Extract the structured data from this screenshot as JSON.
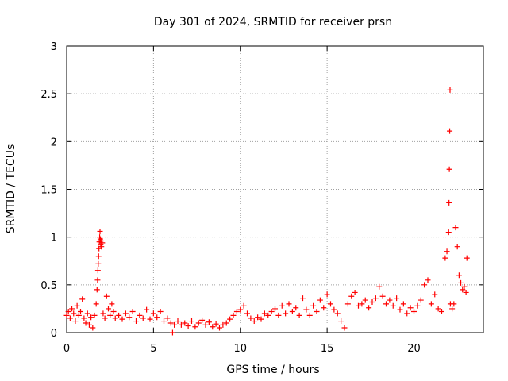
{
  "chart_data": {
    "type": "scatter",
    "title": "Day 301 of 2024, SRMTID for receiver prsn",
    "xlabel": "GPS time / hours",
    "ylabel": "SRMTID / TECUs",
    "xlim": [
      0,
      24
    ],
    "ylim": [
      0,
      3
    ],
    "xticks": [
      0,
      5,
      10,
      15,
      20
    ],
    "yticks": [
      0,
      0.5,
      1,
      1.5,
      2,
      2.5,
      3
    ],
    "xtick_labels": [
      "0",
      "5",
      "10",
      "15",
      "20"
    ],
    "ytick_labels": [
      "0",
      "0.5",
      "1",
      "1.5",
      "2",
      "2.5",
      "3"
    ],
    "grid": true,
    "marker": "+",
    "color": "#ff0000",
    "series": [
      {
        "name": "SRMTID",
        "points": [
          [
            0.0,
            0.18
          ],
          [
            0.1,
            0.22
          ],
          [
            0.2,
            0.15
          ],
          [
            0.3,
            0.25
          ],
          [
            0.4,
            0.2
          ],
          [
            0.5,
            0.12
          ],
          [
            0.6,
            0.28
          ],
          [
            0.7,
            0.18
          ],
          [
            0.8,
            0.22
          ],
          [
            0.9,
            0.35
          ],
          [
            1.0,
            0.15
          ],
          [
            1.1,
            0.1
          ],
          [
            1.2,
            0.2
          ],
          [
            1.3,
            0.08
          ],
          [
            1.4,
            0.16
          ],
          [
            1.5,
            0.05
          ],
          [
            1.6,
            0.18
          ],
          [
            1.7,
            0.3
          ],
          [
            1.75,
            0.45
          ],
          [
            1.78,
            0.55
          ],
          [
            1.8,
            0.65
          ],
          [
            1.82,
            0.72
          ],
          [
            1.84,
            0.8
          ],
          [
            1.86,
            0.88
          ],
          [
            1.88,
            0.95
          ],
          [
            1.9,
            1.0
          ],
          [
            1.92,
            1.06
          ],
          [
            1.94,
            0.98
          ],
          [
            1.96,
            0.92
          ],
          [
            1.98,
            0.96
          ],
          [
            2.0,
            0.9
          ],
          [
            2.05,
            0.94
          ],
          [
            2.1,
            0.2
          ],
          [
            2.2,
            0.15
          ],
          [
            2.3,
            0.38
          ],
          [
            2.4,
            0.25
          ],
          [
            2.5,
            0.18
          ],
          [
            2.6,
            0.3
          ],
          [
            2.7,
            0.22
          ],
          [
            2.8,
            0.15
          ],
          [
            3.0,
            0.18
          ],
          [
            3.2,
            0.14
          ],
          [
            3.4,
            0.2
          ],
          [
            3.6,
            0.16
          ],
          [
            3.8,
            0.22
          ],
          [
            4.0,
            0.12
          ],
          [
            4.2,
            0.18
          ],
          [
            4.4,
            0.15
          ],
          [
            4.6,
            0.24
          ],
          [
            4.8,
            0.14
          ],
          [
            5.0,
            0.2
          ],
          [
            5.2,
            0.16
          ],
          [
            5.4,
            0.22
          ],
          [
            5.6,
            0.12
          ],
          [
            5.8,
            0.15
          ],
          [
            6.0,
            0.1
          ],
          [
            6.1,
            0.0
          ],
          [
            6.2,
            0.08
          ],
          [
            6.4,
            0.12
          ],
          [
            6.6,
            0.08
          ],
          [
            6.8,
            0.1
          ],
          [
            7.0,
            0.07
          ],
          [
            7.2,
            0.12
          ],
          [
            7.4,
            0.06
          ],
          [
            7.6,
            0.1
          ],
          [
            7.8,
            0.13
          ],
          [
            8.0,
            0.08
          ],
          [
            8.2,
            0.11
          ],
          [
            8.4,
            0.06
          ],
          [
            8.6,
            0.09
          ],
          [
            8.8,
            0.05
          ],
          [
            9.0,
            0.08
          ],
          [
            9.2,
            0.1
          ],
          [
            9.4,
            0.14
          ],
          [
            9.6,
            0.18
          ],
          [
            9.8,
            0.22
          ],
          [
            10.0,
            0.24
          ],
          [
            10.2,
            0.28
          ],
          [
            10.4,
            0.2
          ],
          [
            10.6,
            0.15
          ],
          [
            10.8,
            0.12
          ],
          [
            11.0,
            0.16
          ],
          [
            11.2,
            0.14
          ],
          [
            11.4,
            0.2
          ],
          [
            11.6,
            0.18
          ],
          [
            11.8,
            0.22
          ],
          [
            12.0,
            0.25
          ],
          [
            12.2,
            0.18
          ],
          [
            12.4,
            0.28
          ],
          [
            12.6,
            0.2
          ],
          [
            12.8,
            0.3
          ],
          [
            13.0,
            0.22
          ],
          [
            13.2,
            0.26
          ],
          [
            13.4,
            0.18
          ],
          [
            13.6,
            0.36
          ],
          [
            13.8,
            0.24
          ],
          [
            14.0,
            0.18
          ],
          [
            14.2,
            0.28
          ],
          [
            14.4,
            0.22
          ],
          [
            14.6,
            0.34
          ],
          [
            14.8,
            0.26
          ],
          [
            15.0,
            0.4
          ],
          [
            15.2,
            0.3
          ],
          [
            15.4,
            0.24
          ],
          [
            15.6,
            0.2
          ],
          [
            15.8,
            0.12
          ],
          [
            16.0,
            0.05
          ],
          [
            16.2,
            0.3
          ],
          [
            16.4,
            0.38
          ],
          [
            16.6,
            0.42
          ],
          [
            16.8,
            0.28
          ],
          [
            17.0,
            0.3
          ],
          [
            17.2,
            0.34
          ],
          [
            17.4,
            0.26
          ],
          [
            17.6,
            0.32
          ],
          [
            17.8,
            0.36
          ],
          [
            18.0,
            0.48
          ],
          [
            18.2,
            0.38
          ],
          [
            18.4,
            0.3
          ],
          [
            18.6,
            0.34
          ],
          [
            18.8,
            0.28
          ],
          [
            19.0,
            0.36
          ],
          [
            19.2,
            0.24
          ],
          [
            19.4,
            0.3
          ],
          [
            19.6,
            0.2
          ],
          [
            19.8,
            0.26
          ],
          [
            20.0,
            0.22
          ],
          [
            20.2,
            0.28
          ],
          [
            20.4,
            0.34
          ],
          [
            20.6,
            0.5
          ],
          [
            20.8,
            0.55
          ],
          [
            21.0,
            0.3
          ],
          [
            21.2,
            0.4
          ],
          [
            21.4,
            0.25
          ],
          [
            21.6,
            0.22
          ],
          [
            21.8,
            0.78
          ],
          [
            21.9,
            0.85
          ],
          [
            22.0,
            1.05
          ],
          [
            22.02,
            1.36
          ],
          [
            22.04,
            1.71
          ],
          [
            22.06,
            2.11
          ],
          [
            22.08,
            2.54
          ],
          [
            22.1,
            0.3
          ],
          [
            22.2,
            0.25
          ],
          [
            22.3,
            0.3
          ],
          [
            22.4,
            1.1
          ],
          [
            22.5,
            0.9
          ],
          [
            22.6,
            0.6
          ],
          [
            22.7,
            0.52
          ],
          [
            22.8,
            0.45
          ],
          [
            22.9,
            0.48
          ],
          [
            23.0,
            0.42
          ],
          [
            23.05,
            0.78
          ]
        ]
      }
    ]
  }
}
